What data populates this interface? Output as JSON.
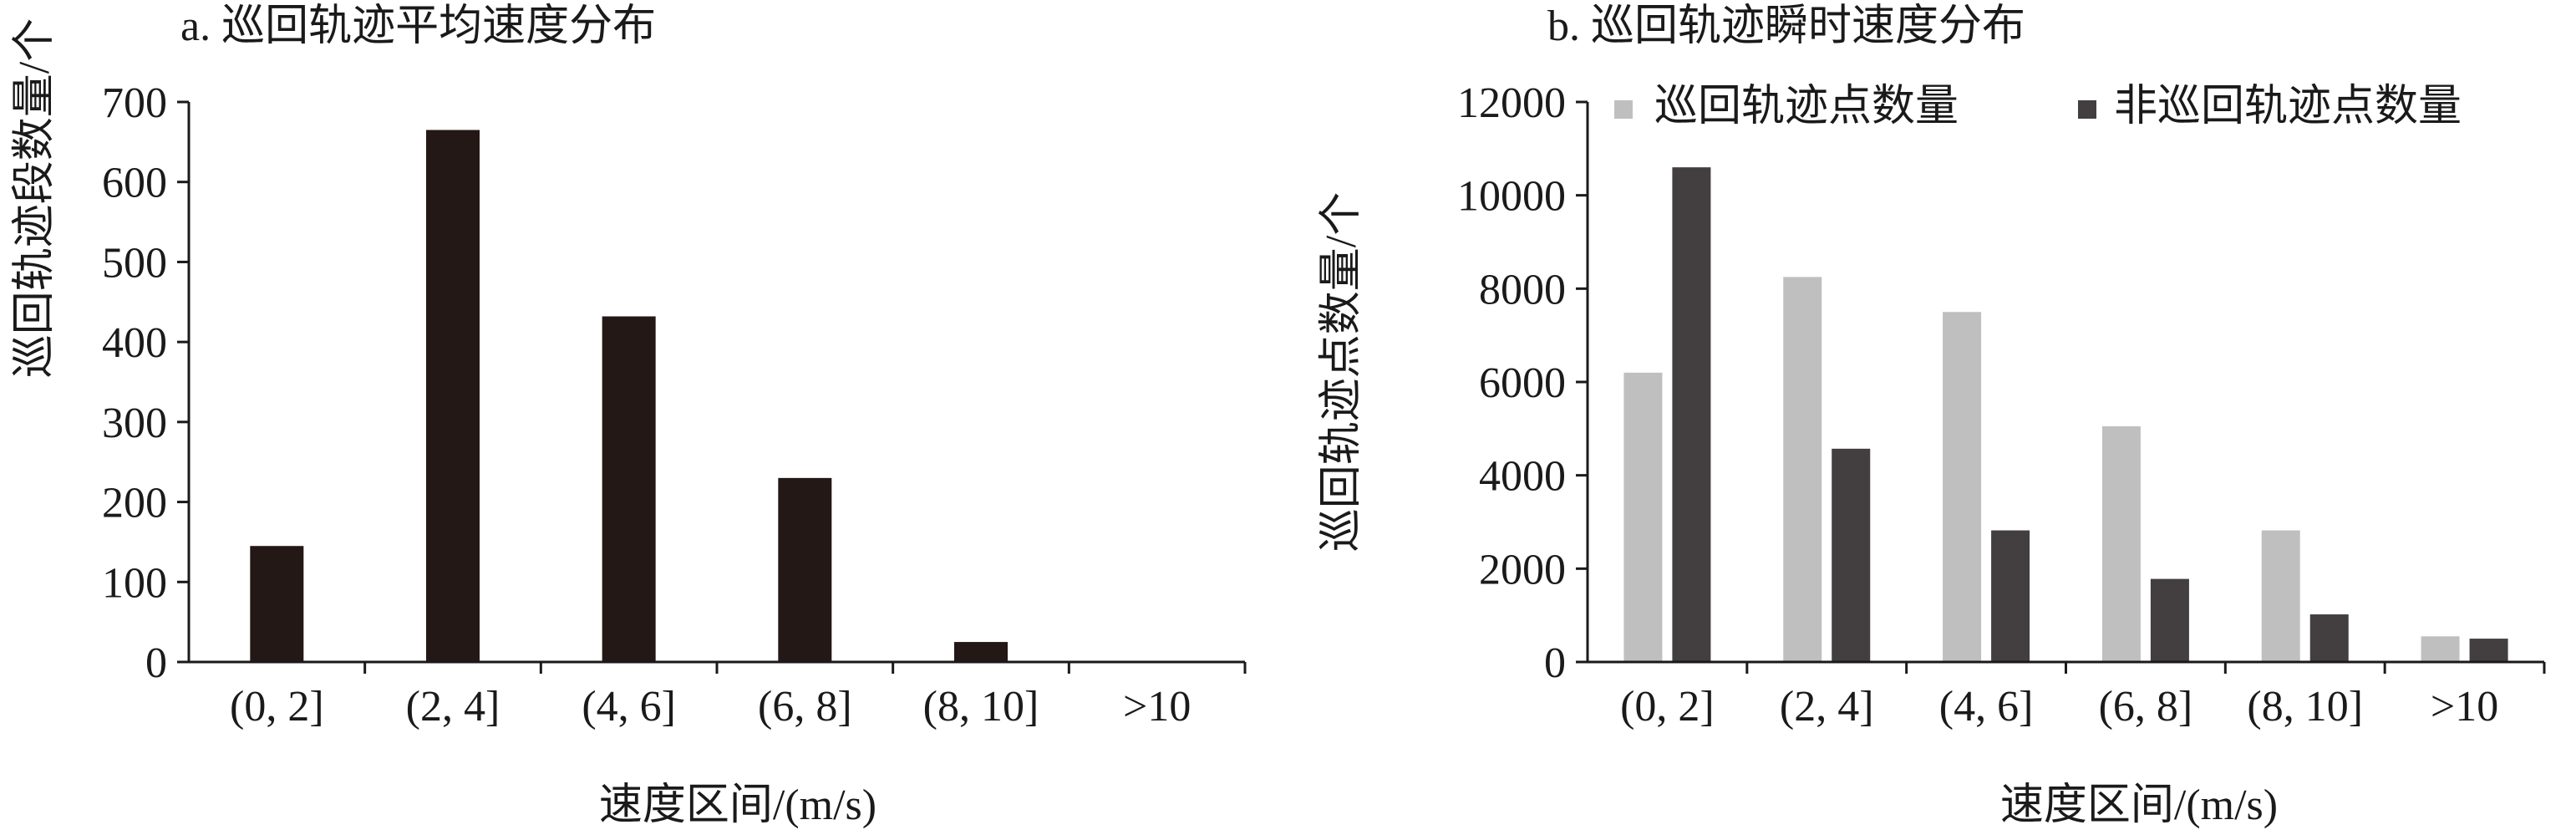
{
  "chart_data": [
    {
      "type": "bar",
      "title": "a. 巡回轨迹平均速度分布",
      "xlabel": "速度区间/(m/s)",
      "ylabel": "巡回轨迹段数量/个",
      "categories": [
        "(0, 2]",
        "(2, 4]",
        "(4, 6]",
        "(6, 8]",
        "(8, 10]",
        ">10"
      ],
      "series": [
        {
          "values": [
            145,
            665,
            432,
            230,
            25,
            0
          ],
          "color": "#231815"
        }
      ],
      "ylim": [
        0,
        700
      ],
      "yticks": [
        0,
        100,
        200,
        300,
        400,
        500,
        600,
        700
      ],
      "grid": false,
      "legend": "none"
    },
    {
      "type": "bar",
      "title": "b. 巡回轨迹瞬时速度分布",
      "xlabel": "速度区间/(m/s)",
      "ylabel": "巡回轨迹点数量/个",
      "categories": [
        "(0, 2]",
        "(2, 4]",
        "(4, 6]",
        "(6, 8]",
        "(8, 10]",
        ">10"
      ],
      "series": [
        {
          "name": "巡回轨迹点数量",
          "values": [
            6200,
            8250,
            7500,
            5050,
            2820,
            550
          ],
          "color": "#bfbfbf"
        },
        {
          "name": "非巡回轨迹点数量",
          "values": [
            10600,
            4570,
            2820,
            1780,
            1020,
            500
          ],
          "color": "#433e3f"
        }
      ],
      "ylim": [
        0,
        12000
      ],
      "yticks": [
        0,
        2000,
        4000,
        6000,
        8000,
        10000,
        12000
      ],
      "grid": false,
      "legend": "top"
    }
  ]
}
